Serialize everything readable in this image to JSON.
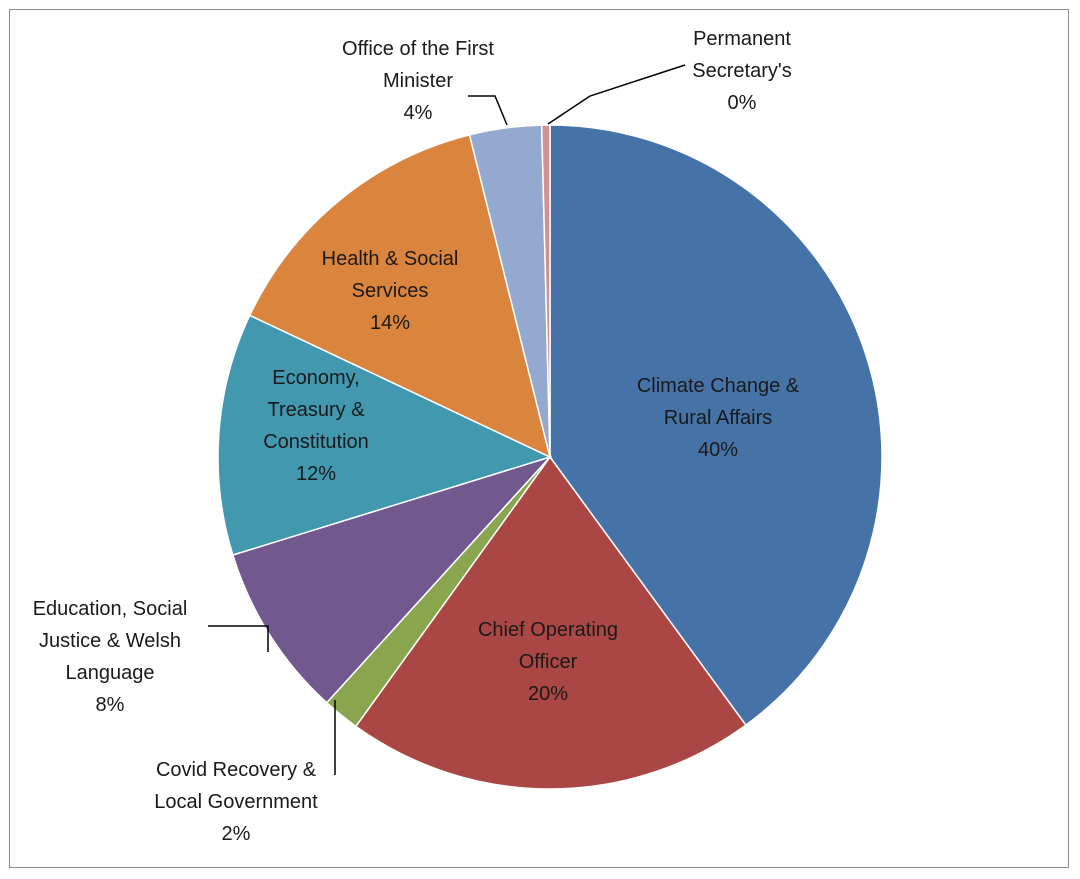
{
  "chart_data": {
    "type": "pie",
    "title": "",
    "slices": [
      {
        "name": "Climate Change & Rural Affairs",
        "label_lines": [
          "Climate Change &",
          "Rural Affairs"
        ],
        "value": 40,
        "pct_label": "40%",
        "color": "#4572A7"
      },
      {
        "name": "Chief Operating Officer",
        "label_lines": [
          "Chief Operating",
          "Officer"
        ],
        "value": 20,
        "pct_label": "20%",
        "color": "#AA4643"
      },
      {
        "name": "Covid Recovery & Local Government",
        "label_lines": [
          "Covid Recovery &",
          "Local Government"
        ],
        "value": 1.8,
        "pct_label": "2%",
        "color": "#89A54E"
      },
      {
        "name": "Education, Social Justice & Welsh Language",
        "label_lines": [
          "Education, Social",
          "Justice & Welsh",
          "Language"
        ],
        "value": 8.5,
        "pct_label": "8%",
        "color": "#71588F"
      },
      {
        "name": "Economy, Treasury & Constitution",
        "label_lines": [
          "Economy,",
          "Treasury &",
          "Constitution"
        ],
        "value": 11.8,
        "pct_label": "12%",
        "color": "#4198AF"
      },
      {
        "name": "Health & Social Services",
        "label_lines": [
          "Health & Social",
          "Services"
        ],
        "value": 14.1,
        "pct_label": "14%",
        "color": "#DB843D"
      },
      {
        "name": "Office of the First Minister",
        "label_lines": [
          "Office of the First",
          "Minister"
        ],
        "value": 3.5,
        "pct_label": "4%",
        "color": "#93A9CF"
      },
      {
        "name": "Permanent Secretary's",
        "label_lines": [
          "Permanent",
          "Secretary's"
        ],
        "value": 0.4,
        "pct_label": "0%",
        "color": "#D19392"
      }
    ],
    "legend": "none",
    "data_labels": "category name and percentage"
  }
}
